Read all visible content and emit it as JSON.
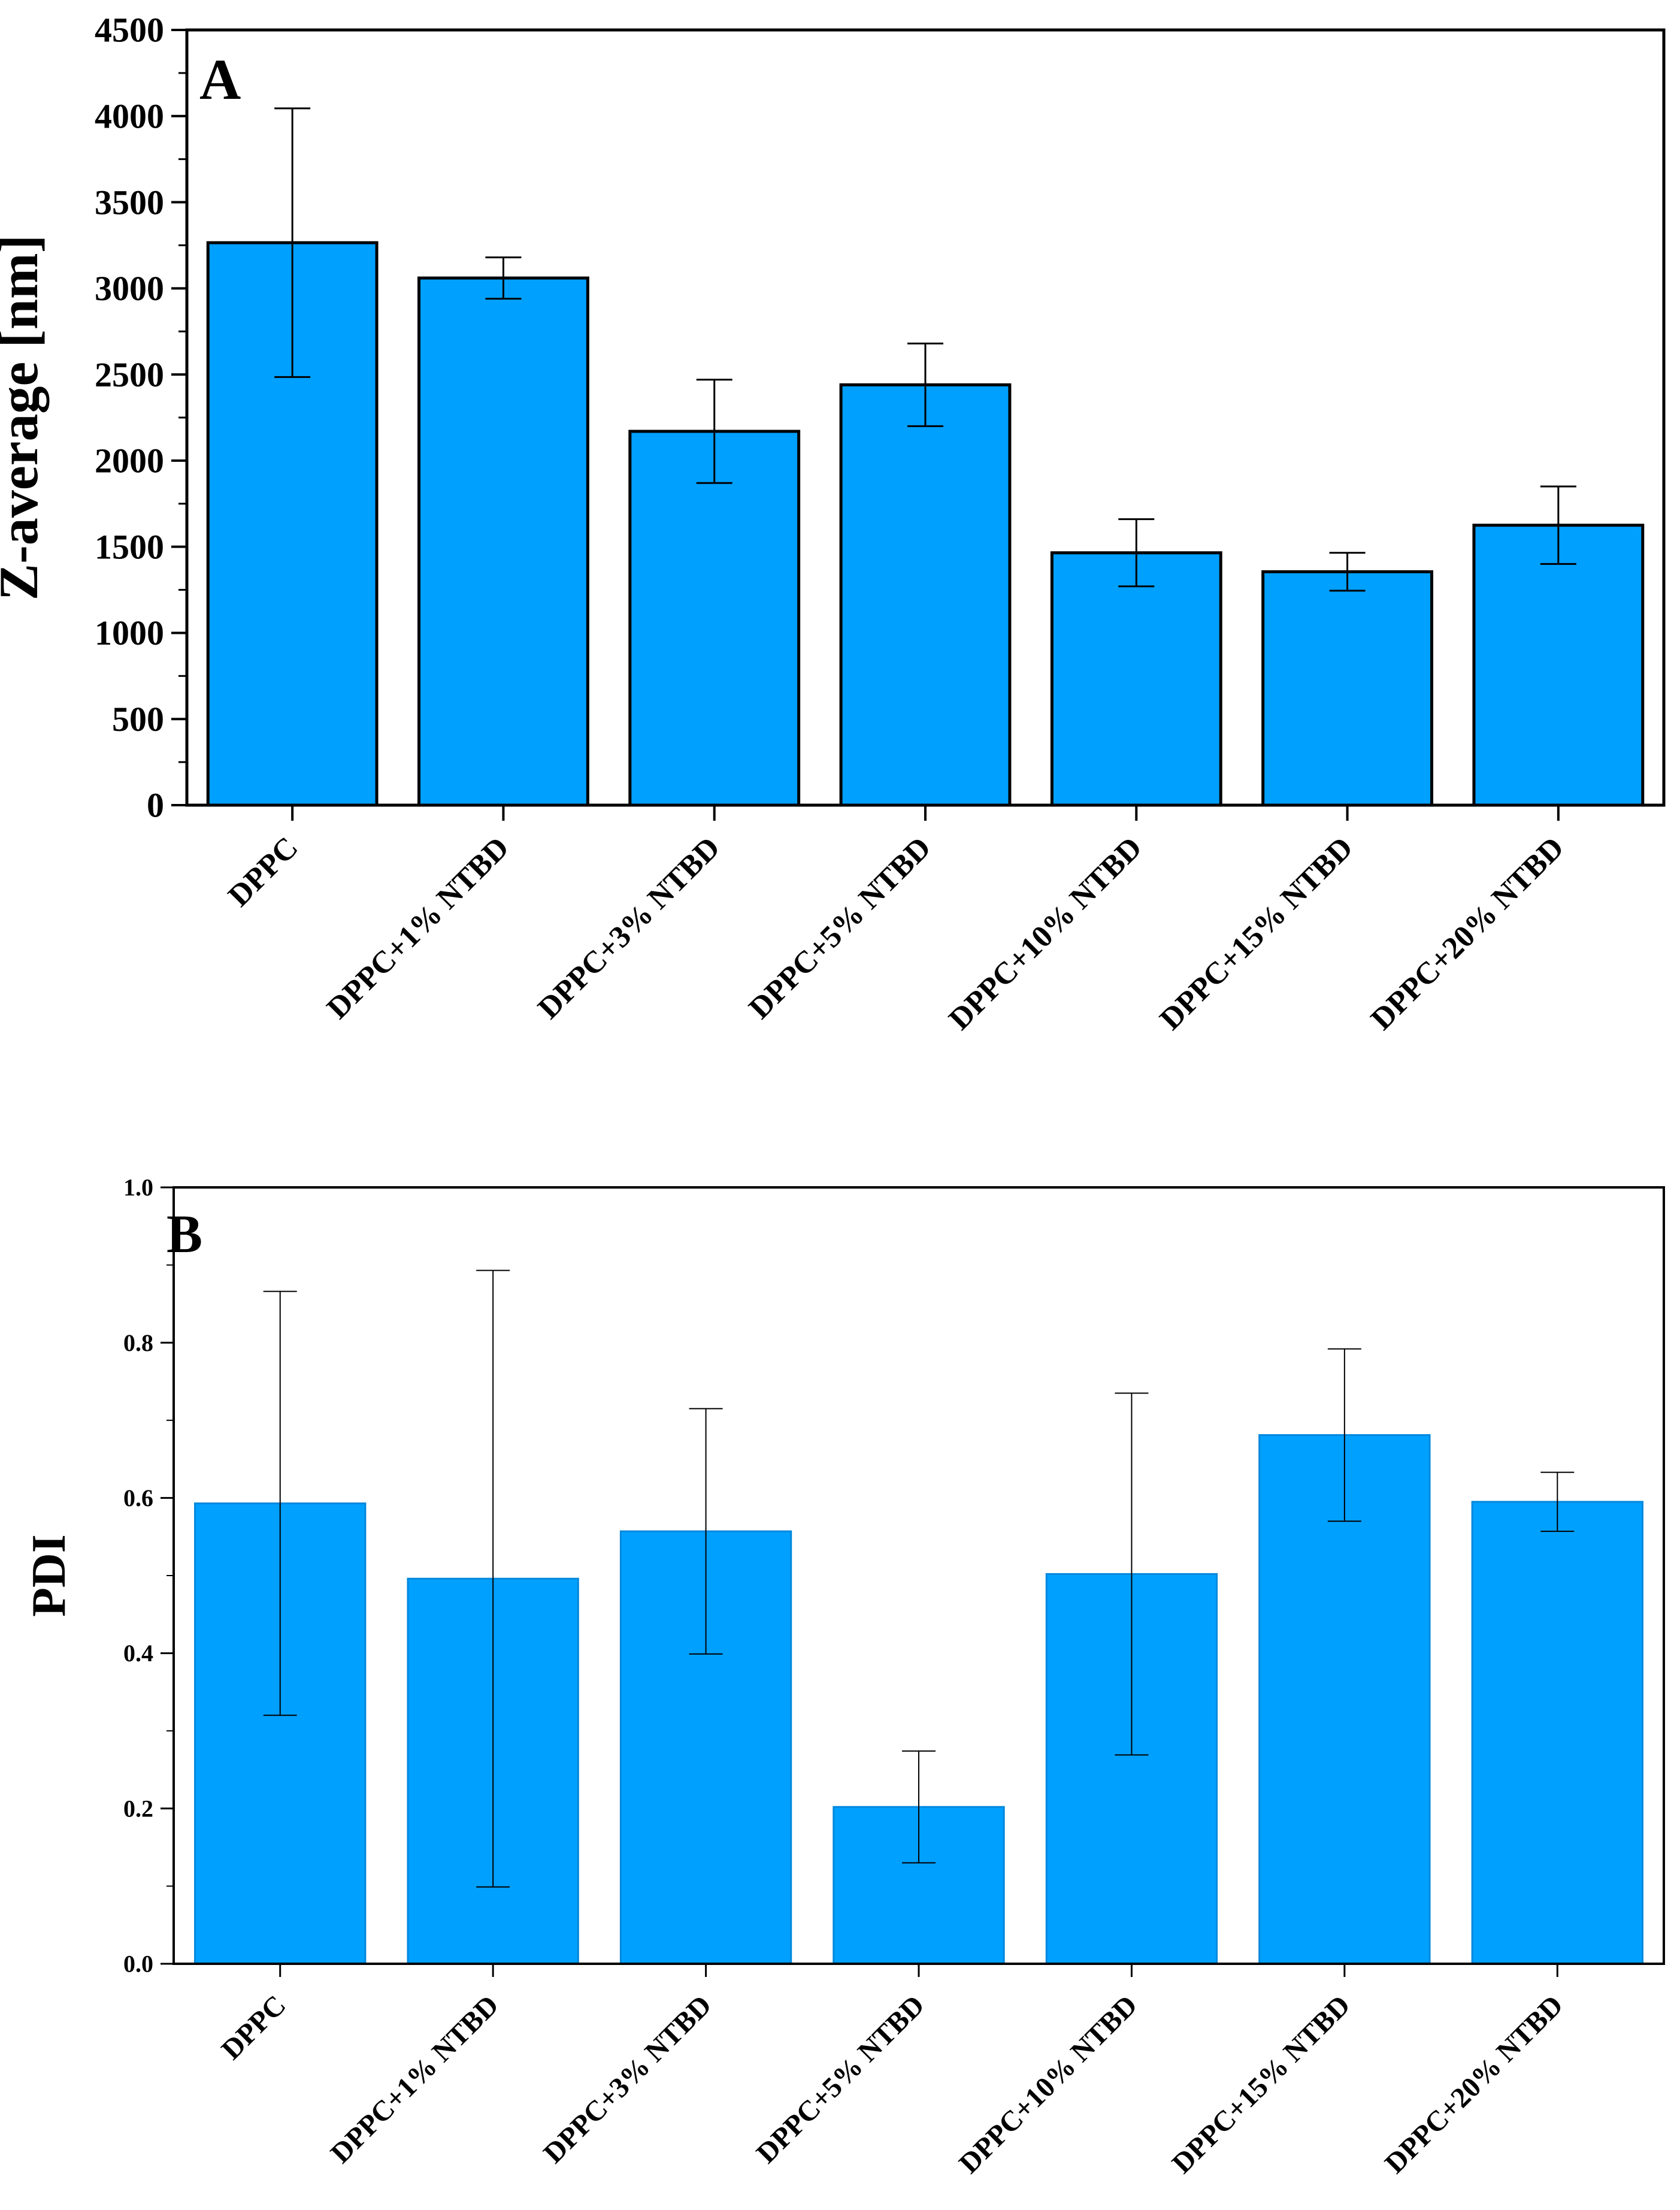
{
  "colors": {
    "bar_fill": "#00A0FF",
    "bar_stroke_a": "#000000",
    "bar_stroke_b": "#0088DD",
    "axis": "#000000",
    "background": "#ffffff"
  },
  "chart_data": [
    {
      "type": "bar",
      "panel_label": "A",
      "title": "",
      "xlabel": "",
      "ylabel": "Z-average [nm]",
      "ylim": [
        0,
        4500
      ],
      "yticks": [
        0,
        500,
        1000,
        1500,
        2000,
        2500,
        3000,
        3500,
        4000,
        4500
      ],
      "ytick_labels": [
        "0",
        "500",
        "1000",
        "1500",
        "2000",
        "2500",
        "3000",
        "3500",
        "4000",
        "4500"
      ],
      "grid": false,
      "categories": [
        "DPPC",
        "DPPC+1% NTBD",
        "DPPC+3% NTBD",
        "DPPC+5% NTBD",
        "DPPC+10% NTBD",
        "DPPC+15% NTBD",
        "DPPC+20% NTBD"
      ],
      "values": [
        3265,
        3060,
        2170,
        2440,
        1465,
        1355,
        1625
      ],
      "errors": [
        780,
        120,
        300,
        240,
        195,
        110,
        225
      ]
    },
    {
      "type": "bar",
      "panel_label": "B",
      "title": "",
      "xlabel": "",
      "ylabel": "PDI",
      "ylim": [
        0,
        1.0
      ],
      "yticks": [
        0,
        0.2,
        0.4,
        0.6,
        0.8,
        1.0
      ],
      "ytick_labels": [
        "0.0",
        "0.2",
        "0.4",
        "0.6",
        "0.8",
        "1.0"
      ],
      "grid": false,
      "categories": [
        "DPPC",
        "DPPC+1% NTBD",
        "DPPC+3% NTBD",
        "DPPC+5% NTBD",
        "DPPC+10% NTBD",
        "DPPC+15% NTBD",
        "DPPC+20% NTBD"
      ],
      "values": [
        0.593,
        0.496,
        0.557,
        0.202,
        0.502,
        0.681,
        0.595
      ],
      "errors": [
        0.273,
        0.397,
        0.158,
        0.072,
        0.233,
        0.111,
        0.038
      ]
    }
  ]
}
